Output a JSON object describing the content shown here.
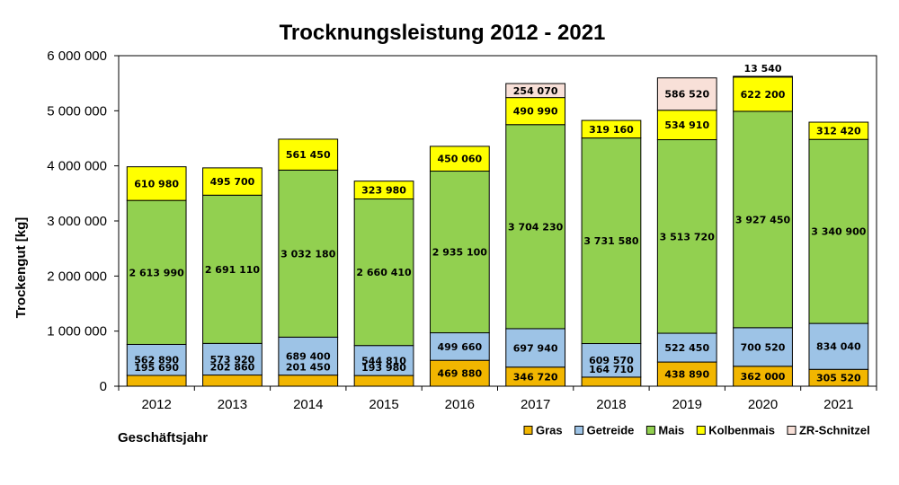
{
  "chart_data": {
    "type": "bar",
    "stacked": true,
    "title": "Trocknungsleistung 2012 - 2021",
    "xlabel": "Geschäftsjahr",
    "ylabel": "Trockengut [kg]",
    "ylim": [
      0,
      6000000
    ],
    "yticks": [
      0,
      1000000,
      2000000,
      3000000,
      4000000,
      5000000,
      6000000
    ],
    "ytick_labels": [
      "0",
      "1 000 000",
      "2 000 000",
      "3 000 000",
      "4 000 000",
      "5 000 000",
      "6 000 000"
    ],
    "grid": false,
    "legend_position": "bottom-right",
    "categories": [
      "2012",
      "2013",
      "2014",
      "2015",
      "2016",
      "2017",
      "2018",
      "2019",
      "2020",
      "2021"
    ],
    "series": [
      {
        "name": "Gras",
        "color": "#F2B600",
        "values": [
          195690,
          202860,
          201450,
          193980,
          469880,
          346720,
          164710,
          438890,
          362000,
          305520
        ],
        "labels": [
          "195 690",
          "202 860",
          "201 450",
          "193 980",
          "469 880",
          "346 720",
          "164 710",
          "438 890",
          "362 000",
          "305 520"
        ]
      },
      {
        "name": "Getreide",
        "color": "#9DC3E6",
        "values": [
          562890,
          573920,
          689400,
          544810,
          499660,
          697940,
          609570,
          522450,
          700520,
          834040
        ],
        "labels": [
          "562 890",
          "573 920",
          "689 400",
          "544 810",
          "499 660",
          "697 940",
          "609 570",
          "522 450",
          "700 520",
          "834 040"
        ]
      },
      {
        "name": "Mais",
        "color": "#92D050",
        "values": [
          2613990,
          2691110,
          3032180,
          2660410,
          2935100,
          3704230,
          3731580,
          3513720,
          3927450,
          3340900
        ],
        "labels": [
          "2 613 990",
          "2 691 110",
          "3 032 180",
          "2 660 410",
          "2 935 100",
          "3 704 230",
          "3 731 580",
          "3 513 720",
          "3 927 450",
          "3 340 900"
        ]
      },
      {
        "name": "Kolbenmais",
        "color": "#FFFF00",
        "values": [
          610980,
          495700,
          561450,
          323980,
          450060,
          490990,
          319160,
          534910,
          622200,
          312420
        ],
        "labels": [
          "610 980",
          "495 700",
          "561 450",
          "323 980",
          "450 060",
          "490 990",
          "319 160",
          "534 910",
          "622 200",
          "312 420"
        ]
      },
      {
        "name": "ZR-Schnitzel",
        "color": "#F8E0D8",
        "values": [
          0,
          0,
          0,
          0,
          0,
          254070,
          0,
          586520,
          13540,
          0
        ],
        "labels": [
          "",
          "",
          "",
          "",
          "",
          "254 070",
          "",
          "586 520",
          "13 540",
          ""
        ]
      }
    ]
  }
}
